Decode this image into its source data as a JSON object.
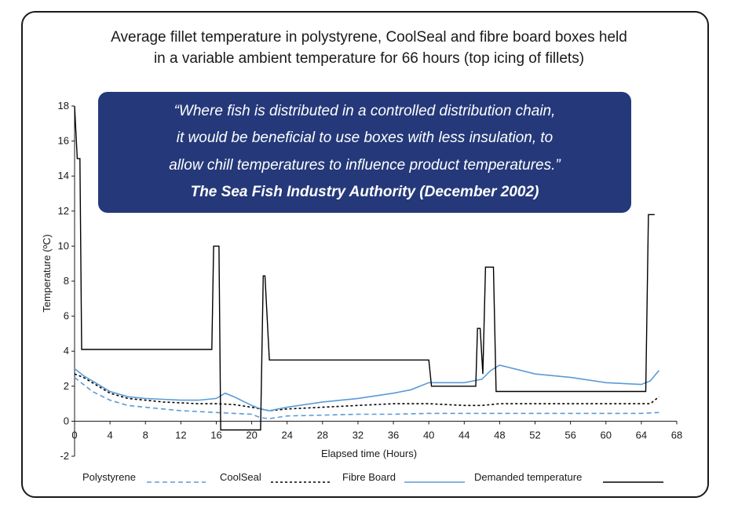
{
  "chart_data": {
    "type": "line",
    "title_line1": "Average fillet temperature in polystyrene, CoolSeal and fibre board boxes held",
    "title_line2": "in a variable ambient temperature for 66 hours (top icing of fillets)",
    "xlabel": "Elapsed time (Hours)",
    "ylabel": "Temperature (ºC)",
    "xlim": [
      0,
      68
    ],
    "ylim": [
      -2,
      18
    ],
    "xticks": [
      0,
      4,
      8,
      12,
      16,
      20,
      24,
      28,
      32,
      36,
      40,
      44,
      48,
      52,
      56,
      60,
      64,
      68
    ],
    "yticks": [
      -2,
      0,
      2,
      4,
      6,
      8,
      10,
      12,
      14,
      16,
      18
    ],
    "series": [
      {
        "name": "Polystyrene",
        "color": "#5b9bd5",
        "style": "dashed",
        "x": [
          0,
          1,
          2,
          4,
          6,
          8,
          10,
          12,
          14,
          16,
          18,
          20,
          21,
          22,
          24,
          28,
          32,
          36,
          40,
          44,
          48,
          52,
          56,
          60,
          64,
          66
        ],
        "y": [
          2.5,
          2.1,
          1.7,
          1.2,
          0.9,
          0.8,
          0.7,
          0.6,
          0.55,
          0.5,
          0.45,
          0.4,
          0.2,
          0.15,
          0.3,
          0.35,
          0.4,
          0.4,
          0.45,
          0.45,
          0.45,
          0.45,
          0.45,
          0.45,
          0.45,
          0.5
        ]
      },
      {
        "name": "CoolSeal",
        "color": "#000000",
        "style": "dotted",
        "x": [
          0,
          1,
          2,
          4,
          6,
          8,
          10,
          12,
          14,
          16,
          18,
          20,
          21,
          22,
          24,
          28,
          32,
          36,
          40,
          44,
          46,
          48,
          52,
          56,
          60,
          64,
          65,
          66
        ],
        "y": [
          2.7,
          2.5,
          2.2,
          1.6,
          1.3,
          1.2,
          1.1,
          1.05,
          1.0,
          1.0,
          0.95,
          0.8,
          0.7,
          0.6,
          0.7,
          0.8,
          0.9,
          1.0,
          1.0,
          0.9,
          0.9,
          1.0,
          1.0,
          1.0,
          1.0,
          1.0,
          1.0,
          1.4
        ]
      },
      {
        "name": "Fibre Board",
        "color": "#5b9bd5",
        "style": "solid",
        "x": [
          0,
          1,
          2,
          4,
          6,
          8,
          10,
          12,
          14,
          16,
          17,
          18,
          20,
          21,
          22,
          24,
          28,
          32,
          36,
          38,
          40,
          44,
          46,
          47,
          48,
          52,
          56,
          60,
          64,
          65,
          66
        ],
        "y": [
          3.0,
          2.6,
          2.3,
          1.7,
          1.4,
          1.3,
          1.25,
          1.2,
          1.2,
          1.3,
          1.6,
          1.4,
          0.9,
          0.7,
          0.6,
          0.8,
          1.1,
          1.3,
          1.6,
          1.8,
          2.2,
          2.2,
          2.4,
          2.9,
          3.2,
          2.7,
          2.5,
          2.2,
          2.1,
          2.3,
          2.9
        ]
      },
      {
        "name": "Demanded temperature",
        "color": "#000000",
        "style": "solid",
        "x": [
          0,
          0.3,
          0.6,
          0.8,
          15.5,
          15.7,
          16.3,
          16.5,
          16.9,
          19,
          21,
          21.3,
          21.5,
          22,
          22.2,
          40,
          40.3,
          45.3,
          45.5,
          45.8,
          46.1,
          46.4,
          46.7,
          47.3,
          47.6,
          64.5,
          64.8,
          65.5
        ],
        "y": [
          18,
          15,
          15,
          4.1,
          4.1,
          10,
          10,
          -0.5,
          -0.5,
          -0.5,
          -0.5,
          8.3,
          8.3,
          3.5,
          3.5,
          3.5,
          2.0,
          2.0,
          5.3,
          5.3,
          2.7,
          8.8,
          8.8,
          8.8,
          1.7,
          1.7,
          11.8,
          11.8
        ]
      }
    ]
  },
  "quote": {
    "line1": "“Where fish is distributed in a controlled distribution chain,",
    "line2": "it would be beneficial to use boxes with less insulation, to",
    "line3": "allow chill temperatures to influence product temperatures.”",
    "source": "The Sea Fish Industry Authority (December 2002)"
  }
}
